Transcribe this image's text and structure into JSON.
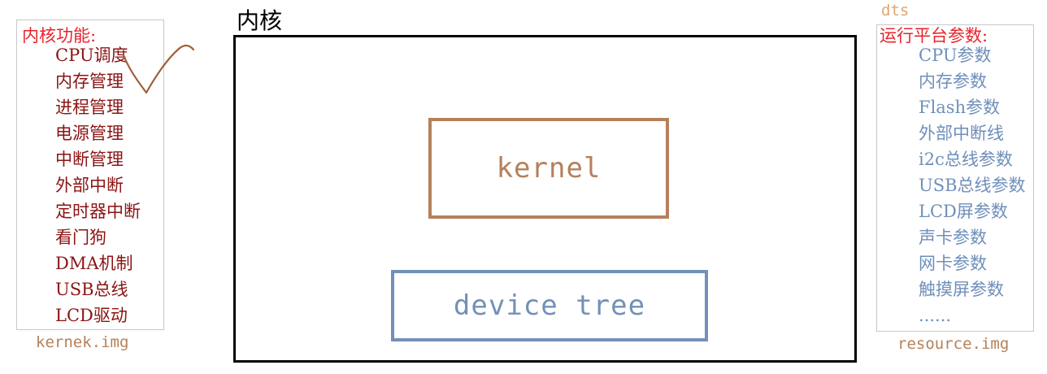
{
  "left_panel": {
    "heading": "内核功能:",
    "items": [
      "CPU调度",
      "内存管理",
      "进程管理",
      "电源管理",
      "中断管理",
      "外部中断",
      "定时器中断",
      "看门狗",
      "DMA机制",
      "USB总线",
      "LCD驱动"
    ],
    "caption": "kernek.img"
  },
  "center": {
    "title": "内核",
    "kernel_label": "kernel",
    "device_tree_label": "device tree"
  },
  "right_panel": {
    "top_label": "dts",
    "heading": "运行平台参数:",
    "items": [
      "CPU参数",
      "内存参数",
      "Flash参数",
      "外部中断线",
      "i2c总线参数",
      "USB总线参数",
      "LCD屏参数",
      "声卡参数",
      "网卡参数",
      "触摸屏参数",
      "......"
    ],
    "caption": "resource.img"
  },
  "colors": {
    "left_heading": "#e8232c",
    "left_items": "#8b1414",
    "right_items": "#6f8fba",
    "kernel_box": "#b5805c",
    "device_tree_box": "#7390b8",
    "caption": "#b5815a",
    "checkmark": "#a0603a"
  },
  "icons": {
    "checkmark": "hand-drawn-checkmark"
  }
}
